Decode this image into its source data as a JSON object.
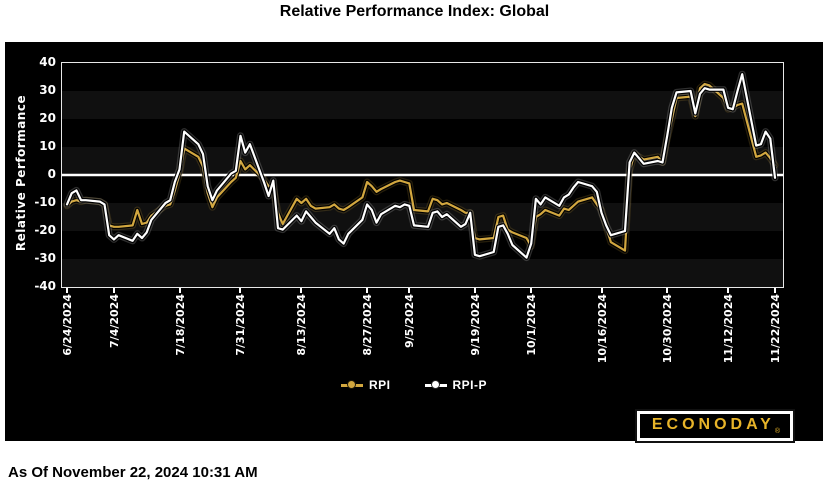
{
  "title": "Relative Performance Index: Global",
  "footer": {
    "as_of": "As Of November 22, 2024 10:31 AM"
  },
  "logo": {
    "text": "ECONODAY",
    "reg": "®",
    "gold": "#e8b429"
  },
  "legend": [
    {
      "label": "RPI",
      "color": "#d2a73f"
    },
    {
      "label": "RPI-P",
      "color": "#ffffff"
    }
  ],
  "chart_data": {
    "type": "line",
    "title": "Relative Performance Index: Global",
    "xlabel": "",
    "ylabel": "Relative Performance",
    "ylim": [
      -40,
      40
    ],
    "yticks": [
      40,
      30,
      20,
      10,
      0,
      -10,
      -20,
      -30,
      -40
    ],
    "grid": "alternating horizontal bands every 10 units",
    "zero_line": true,
    "legend_position": "bottom-center",
    "plot_bg": "#000000",
    "band_light": "#101010",
    "zero_line_color": "#ffffff",
    "x_total_days": 151,
    "xtick_labels": [
      "6/24/2024",
      "7/4/2024",
      "7/18/2024",
      "7/31/2024",
      "8/13/2024",
      "8/27/2024",
      "9/5/2024",
      "9/19/2024",
      "10/1/2024",
      "10/16/2024",
      "10/30/2024",
      "11/12/2024",
      "11/22/2024"
    ],
    "xtick_day_offsets": [
      0,
      10,
      24,
      37,
      50,
      64,
      73,
      87,
      99,
      114,
      128,
      141,
      151
    ],
    "x_dates": [
      "6/24",
      "6/25",
      "6/26",
      "6/27",
      "6/28",
      "7/1",
      "7/2",
      "7/3",
      "7/4",
      "7/5",
      "7/8",
      "7/9",
      "7/10",
      "7/11",
      "7/12",
      "7/15",
      "7/16",
      "7/17",
      "7/18",
      "7/19",
      "7/22",
      "7/23",
      "7/24",
      "7/25",
      "7/26",
      "7/29",
      "7/30",
      "7/31",
      "8/1",
      "8/2",
      "8/5",
      "8/6",
      "8/7",
      "8/8",
      "8/9",
      "8/12",
      "8/13",
      "8/14",
      "8/15",
      "8/16",
      "8/19",
      "8/20",
      "8/21",
      "8/22",
      "8/23",
      "8/26",
      "8/27",
      "8/28",
      "8/29",
      "8/30",
      "9/2",
      "9/3",
      "9/4",
      "9/5",
      "9/6",
      "9/9",
      "9/10",
      "9/11",
      "9/12",
      "9/13",
      "9/16",
      "9/17",
      "9/18",
      "9/19",
      "9/20",
      "9/23",
      "9/24",
      "9/25",
      "9/26",
      "9/27",
      "9/30",
      "10/1",
      "10/2",
      "10/3",
      "10/4",
      "10/7",
      "10/8",
      "10/9",
      "10/10",
      "10/11",
      "10/14",
      "10/15",
      "10/16",
      "10/17",
      "10/18",
      "10/21",
      "10/22",
      "10/23",
      "10/24",
      "10/25",
      "10/28",
      "10/29",
      "10/30",
      "10/31",
      "11/1",
      "11/4",
      "11/5",
      "11/6",
      "11/7",
      "11/8",
      "11/11",
      "11/12",
      "11/13",
      "11/14",
      "11/15",
      "11/18",
      "11/19",
      "11/20",
      "11/21",
      "11/22"
    ],
    "x_day_offsets": [
      0,
      1,
      2,
      3,
      4,
      7,
      8,
      9,
      10,
      11,
      14,
      15,
      16,
      17,
      18,
      21,
      22,
      23,
      24,
      25,
      28,
      29,
      30,
      31,
      32,
      35,
      36,
      37,
      38,
      39,
      42,
      43,
      44,
      45,
      46,
      49,
      50,
      51,
      52,
      53,
      56,
      57,
      58,
      59,
      60,
      63,
      64,
      65,
      66,
      67,
      70,
      71,
      72,
      73,
      74,
      77,
      78,
      79,
      80,
      81,
      84,
      85,
      86,
      87,
      88,
      91,
      92,
      93,
      94,
      95,
      98,
      99,
      100,
      101,
      102,
      105,
      106,
      107,
      108,
      109,
      112,
      113,
      114,
      115,
      116,
      119,
      120,
      121,
      122,
      123,
      126,
      127,
      128,
      129,
      130,
      133,
      134,
      135,
      136,
      137,
      140,
      141,
      142,
      143,
      144,
      147,
      148,
      149,
      150,
      151
    ],
    "series": [
      {
        "name": "RPI",
        "color": "#d2a73f",
        "values": [
          -11,
          -9.5,
          -9,
          -9.5,
          -9,
          -9.5,
          -10.5,
          -18,
          -18.5,
          -18.5,
          -18,
          -12.5,
          -17.5,
          -17,
          -14.5,
          -11,
          -10.5,
          -5.5,
          0.5,
          9.5,
          6.5,
          3,
          -6.5,
          -11.5,
          -8,
          -2.5,
          -1,
          5,
          2,
          3.5,
          -1.5,
          -4,
          -4.5,
          -13.5,
          -17.5,
          -8.5,
          -10,
          -8.5,
          -11,
          -12,
          -11.5,
          -10.5,
          -12,
          -12.5,
          -11.5,
          -8,
          -2.5,
          -4,
          -6,
          -5,
          -2.5,
          -2,
          -2.5,
          -3,
          -12.5,
          -13,
          -8.5,
          -9,
          -10.5,
          -10,
          -12.5,
          -13.5,
          -13.5,
          -22.5,
          -23,
          -22.5,
          -15,
          -14.5,
          -19.5,
          -20.5,
          -22.5,
          -25.5,
          -15,
          -14,
          -12.5,
          -14.5,
          -12,
          -12.5,
          -11,
          -9.5,
          -8,
          -10.5,
          -12.5,
          -18.5,
          -24,
          -27,
          1.5,
          7.5,
          6.5,
          5.5,
          6.5,
          4.5,
          13,
          20,
          27.5,
          28,
          21,
          31,
          32.5,
          32,
          27.5,
          23.5,
          24,
          25,
          25.5,
          6.5,
          7,
          8,
          6,
          3.5
        ]
      },
      {
        "name": "RPI-P",
        "color": "#ffffff",
        "values": [
          -10.5,
          -6.5,
          -5.5,
          -9,
          -9,
          -9.5,
          -10.5,
          -21.5,
          -23,
          -21.5,
          -23.5,
          -21,
          -22.5,
          -20.5,
          -16,
          -10,
          -9,
          -2.5,
          2,
          15.5,
          11,
          7.5,
          -4,
          -9,
          -5.5,
          0.5,
          1.5,
          14,
          8,
          11,
          -2.5,
          -7.5,
          -2,
          -19,
          -19.5,
          -14.5,
          -16.5,
          -13,
          -15,
          -17,
          -21,
          -19,
          -23,
          -24.5,
          -21,
          -16,
          -10.5,
          -12.5,
          -17,
          -14,
          -11,
          -11.5,
          -10.5,
          -11,
          -18,
          -18.5,
          -13.5,
          -13,
          -15,
          -14,
          -18.5,
          -17.5,
          -13.5,
          -28.5,
          -29,
          -27.5,
          -18.5,
          -18,
          -21,
          -25,
          -29.5,
          -24.5,
          -8.5,
          -10.5,
          -8,
          -11,
          -8,
          -7,
          -4.5,
          -2.5,
          -4,
          -6,
          -13.5,
          -18,
          -21.5,
          -20,
          4.5,
          8,
          6,
          4,
          5,
          4.5,
          14,
          24,
          29.5,
          30,
          22,
          29,
          31,
          30.5,
          30.5,
          24,
          23.5,
          30,
          36,
          10.5,
          11,
          15.5,
          13,
          -1
        ]
      }
    ]
  }
}
